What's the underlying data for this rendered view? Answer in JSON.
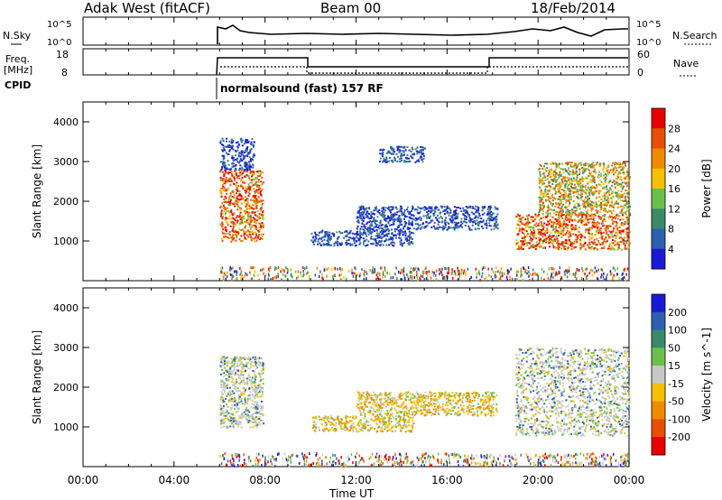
{
  "header": {
    "station": "Adak West (fitACF)",
    "beam": "Beam 00",
    "date": "18/Feb/2014"
  },
  "noise_panel": {
    "left_label": "N.Sky",
    "right_label": "N.Search",
    "left_ticks": [
      "10^5",
      "10^0"
    ],
    "right_ticks": [
      "10^5",
      "10^0"
    ]
  },
  "freq_panel": {
    "left_label_1": "Freq.",
    "left_label_2": "[MHz]",
    "right_label": "Nave",
    "left_ticks": [
      "18",
      "8"
    ],
    "right_ticks": [
      "60",
      "0"
    ]
  },
  "cpid": {
    "label": "CPID",
    "text": "normalsound (fast) 157 RF"
  },
  "time_axis": {
    "label": "Time UT",
    "ticks": [
      "00:00",
      "04:00",
      "08:00",
      "12:00",
      "16:00",
      "20:00",
      "00:00"
    ]
  },
  "chart_data": [
    {
      "type": "heatmap",
      "title": "",
      "xlabel": "",
      "ylabel": "Slant Range [km]",
      "x_range_hours": [
        0,
        24
      ],
      "ylim": [
        0,
        4500
      ],
      "yticks": [
        "1000",
        "2000",
        "3000",
        "4000"
      ],
      "colorbar": {
        "label": "Power [dB]",
        "ticks": [
          "4",
          "8",
          "12",
          "16",
          "20",
          "24",
          "28"
        ],
        "colors": [
          "#1a1ad6",
          "#2f5fb0",
          "#3a8a6a",
          "#6bbf4a",
          "#f5c000",
          "#f08a00",
          "#e85000",
          "#e80000"
        ]
      },
      "regions": [
        {
          "name": "morning-echo",
          "t_start": 6.0,
          "t_end": 7.9,
          "r_min": 1000,
          "r_max": 2800,
          "level": "high"
        },
        {
          "name": "upper-scatter",
          "t_start": 6.0,
          "t_end": 7.5,
          "r_min": 2800,
          "r_max": 3600,
          "level": "low"
        },
        {
          "name": "midday-band-low",
          "t_start": 10.0,
          "t_end": 14.5,
          "r_min": 900,
          "r_max": 1300,
          "level": "low"
        },
        {
          "name": "midday-band-mid",
          "t_start": 12.0,
          "t_end": 18.2,
          "r_min": 1300,
          "r_max": 1900,
          "level": "low"
        },
        {
          "name": "far-patch",
          "t_start": 13.0,
          "t_end": 15.0,
          "r_min": 3000,
          "r_max": 3400,
          "level": "low"
        },
        {
          "name": "evening-strong",
          "t_start": 19.0,
          "t_end": 24.0,
          "r_min": 800,
          "r_max": 1700,
          "level": "high"
        },
        {
          "name": "evening-upper",
          "t_start": 20.0,
          "t_end": 24.0,
          "r_min": 1700,
          "r_max": 3000,
          "level": "mid"
        }
      ]
    },
    {
      "type": "heatmap",
      "title": "",
      "xlabel": "Time UT",
      "ylabel": "Slant Range [km]",
      "x_range_hours": [
        0,
        24
      ],
      "ylim": [
        0,
        4500
      ],
      "yticks": [
        "1000",
        "2000",
        "3000",
        "4000"
      ],
      "colorbar": {
        "label": "Velocity [m s^-1]",
        "ticks": [
          "200",
          "100",
          "50",
          "15",
          "-15",
          "-50",
          "-100",
          "-200"
        ],
        "colors": [
          "#1a1ad6",
          "#2f5fb0",
          "#3a8a6a",
          "#6bbf4a",
          "#c8c8c8",
          "#f5c000",
          "#f08a00",
          "#e85000",
          "#e80000"
        ]
      },
      "regions": [
        {
          "name": "morning-echo",
          "t_start": 6.0,
          "t_end": 7.9,
          "r_min": 1000,
          "r_max": 2800,
          "level": "grey"
        },
        {
          "name": "midday-band-low",
          "t_start": 10.0,
          "t_end": 14.5,
          "r_min": 900,
          "r_max": 1300,
          "level": "orange"
        },
        {
          "name": "midday-band-mid",
          "t_start": 12.0,
          "t_end": 18.2,
          "r_min": 1300,
          "r_max": 1900,
          "level": "orange"
        },
        {
          "name": "evening-band",
          "t_start": 19.0,
          "t_end": 24.0,
          "r_min": 800,
          "r_max": 3000,
          "level": "grey"
        }
      ]
    }
  ]
}
